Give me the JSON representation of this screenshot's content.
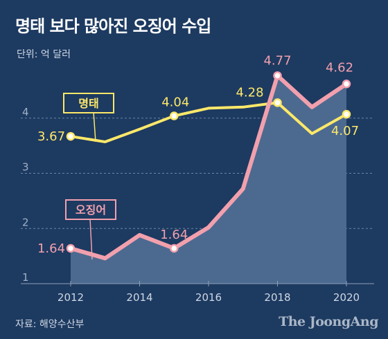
{
  "title": "명태 보다 많아진 오징어 수입",
  "unit_label": "단위: 억 달러",
  "source": "자료: 해양수산부",
  "brand": "The JoongAng",
  "colors": {
    "background": "#1d3a61",
    "pollock": "#fde869",
    "squid": "#f2a0ad",
    "area": "#4c6a90",
    "grid": "#6d86a6"
  },
  "chart_data": {
    "type": "line",
    "x": [
      2012,
      2013,
      2014,
      2015,
      2016,
      2017,
      2018,
      2019,
      2020
    ],
    "xticks": [
      "2012",
      "2014",
      "2016",
      "2018",
      "2020"
    ],
    "yticks": [
      "1",
      "2",
      "3",
      "4"
    ],
    "ylim": [
      1,
      5
    ],
    "series": [
      {
        "name": "명태",
        "values": [
          3.67,
          3.57,
          3.8,
          4.04,
          4.18,
          4.2,
          4.28,
          3.72,
          4.07
        ],
        "labels": [
          {
            "index": 0,
            "text": "3.67"
          },
          {
            "index": 3,
            "text": "4.04"
          },
          {
            "index": 6,
            "text": "4.28"
          },
          {
            "index": 8,
            "text": "4.07"
          }
        ]
      },
      {
        "name": "오징어",
        "values": [
          1.64,
          1.46,
          1.88,
          1.64,
          2.02,
          2.72,
          4.77,
          4.2,
          4.62
        ],
        "labels": [
          {
            "index": 0,
            "text": "1.64"
          },
          {
            "index": 3,
            "text": "1.64"
          },
          {
            "index": 6,
            "text": "4.77"
          },
          {
            "index": 8,
            "text": "4.62"
          }
        ]
      }
    ]
  }
}
